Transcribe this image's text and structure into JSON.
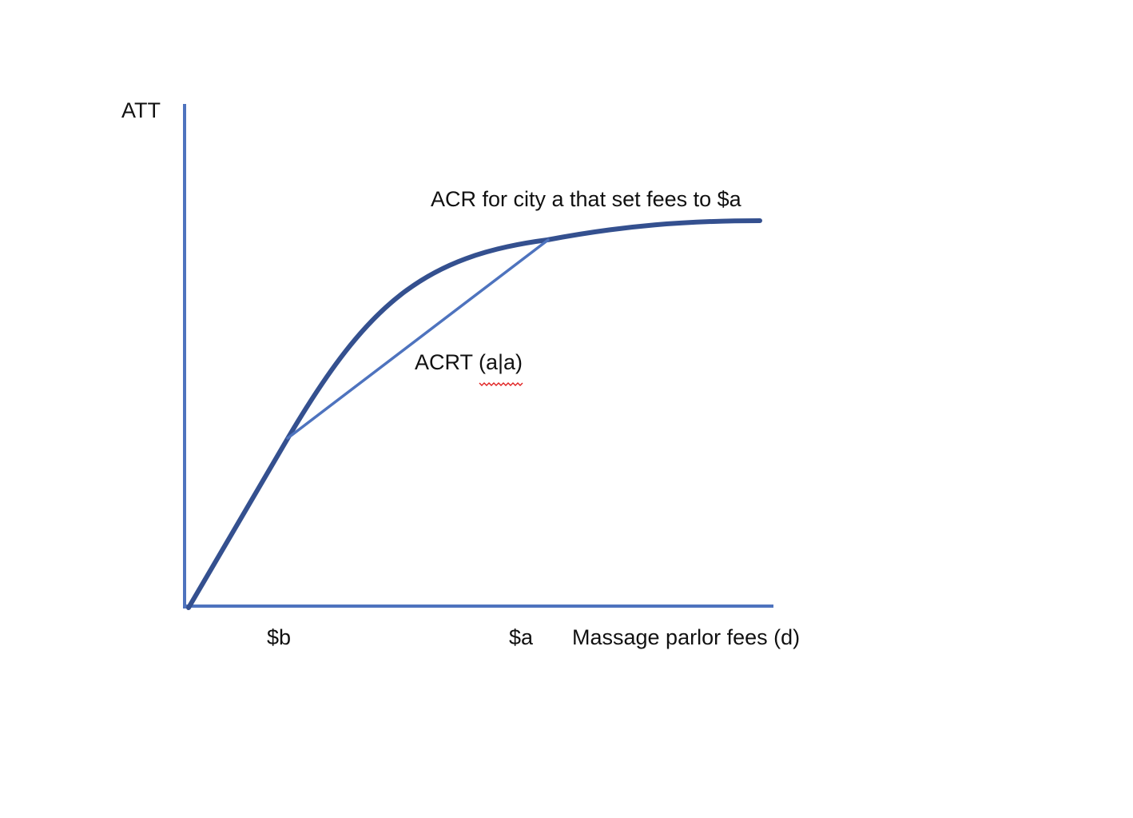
{
  "colors": {
    "axis": "#4e73be",
    "curve": "#34508f",
    "secant": "#4e73be",
    "text": "#111111",
    "spellcheck_underline": "#e02020",
    "background": "#ffffff"
  },
  "labels": {
    "y_axis": "ATT",
    "curve": "ACR for city a that set fees to $a",
    "secant": "ACRT (a|a)",
    "tick_b": "$b",
    "tick_a": "$a",
    "x_axis": "Massage parlor fees (d)"
  }
}
